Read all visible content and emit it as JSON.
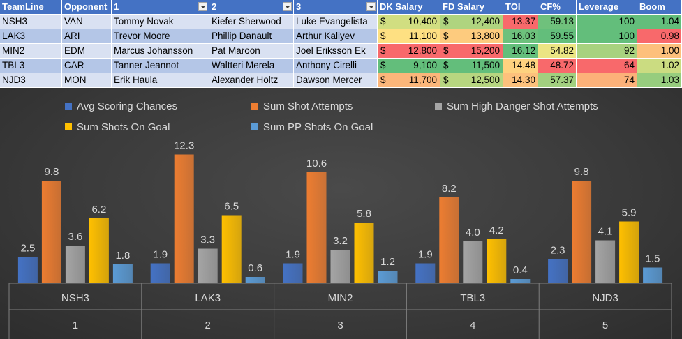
{
  "table": {
    "headers": [
      "TeamLine",
      "Opponent",
      "1",
      "2",
      "3",
      "DK Salary",
      "FD Salary",
      "TOI",
      "CF%",
      "Leverage",
      "Boom"
    ],
    "rows": [
      {
        "team": "NSH3",
        "opp": "VAN",
        "p1": "Tommy Novak",
        "p2": "Kiefer Sherwood",
        "p3": "Luke Evangelista",
        "dk": "10,400",
        "fd": "12,400",
        "toi": "13.37",
        "cf": "59.13",
        "lev": "100",
        "boom": "1.04"
      },
      {
        "team": "LAK3",
        "opp": "ARI",
        "p1": "Trevor Moore",
        "p2": "Phillip Danault",
        "p3": "Arthur Kaliyev",
        "dk": "11,100",
        "fd": "13,800",
        "toi": "16.03",
        "cf": "59.55",
        "lev": "100",
        "boom": "0.98"
      },
      {
        "team": "MIN2",
        "opp": "EDM",
        "p1": "Marcus Johansson",
        "p2": "Pat Maroon",
        "p3": "Joel Eriksson Ek",
        "dk": "12,800",
        "fd": "15,200",
        "toi": "16.12",
        "cf": "54.82",
        "lev": "92",
        "boom": "1.00"
      },
      {
        "team": "TBL3",
        "opp": "CAR",
        "p1": "Tanner Jeannot",
        "p2": "Waltteri Merela",
        "p3": "Anthony Cirelli",
        "dk": "9,100",
        "fd": "11,500",
        "toi": "14.48",
        "cf": "48.72",
        "lev": "64",
        "boom": "1.02"
      },
      {
        "team": "NJD3",
        "opp": "MON",
        "p1": "Erik Haula",
        "p2": "Alexander Holtz",
        "p3": "Dawson Mercer",
        "dk": "11,700",
        "fd": "12,500",
        "toi": "14.30",
        "cf": "57.37",
        "lev": "74",
        "boom": "1.03"
      }
    ],
    "currency_symbol": "$",
    "colors": {
      "header": "#4472c4",
      "row_a": "#d9e1f2",
      "row_b": "#b4c6e7",
      "green": "#63be7b",
      "red": "#f8696b",
      "yellow": "#ffeb84"
    }
  },
  "chart_data": {
    "type": "bar",
    "categories": [
      "NSH3",
      "LAK3",
      "MIN2",
      "TBL3",
      "NJD3"
    ],
    "category_index": [
      "1",
      "2",
      "3",
      "4",
      "5"
    ],
    "series": [
      {
        "name": "Avg Scoring Chances",
        "color": "#4472c4",
        "values": [
          2.5,
          1.9,
          1.9,
          1.9,
          2.3
        ]
      },
      {
        "name": "Sum Shot Attempts",
        "color": "#ed7d31",
        "values": [
          9.8,
          12.3,
          10.6,
          8.2,
          9.8
        ]
      },
      {
        "name": "Sum High Danger Shot Attempts",
        "color": "#a5a5a5",
        "values": [
          3.6,
          3.3,
          3.2,
          4.0,
          4.1
        ]
      },
      {
        "name": "Sum Shots On Goal",
        "color": "#ffc000",
        "values": [
          6.2,
          6.5,
          5.8,
          4.2,
          5.9
        ]
      },
      {
        "name": "Sum PP Shots On Goal",
        "color": "#5b9bd5",
        "values": [
          1.8,
          0.6,
          1.2,
          0.4,
          1.5
        ]
      }
    ],
    "ylim": [
      0,
      12.8
    ],
    "legend_position": "top",
    "grid": false,
    "background": "#404040",
    "text_color": "#d9d9d9"
  }
}
